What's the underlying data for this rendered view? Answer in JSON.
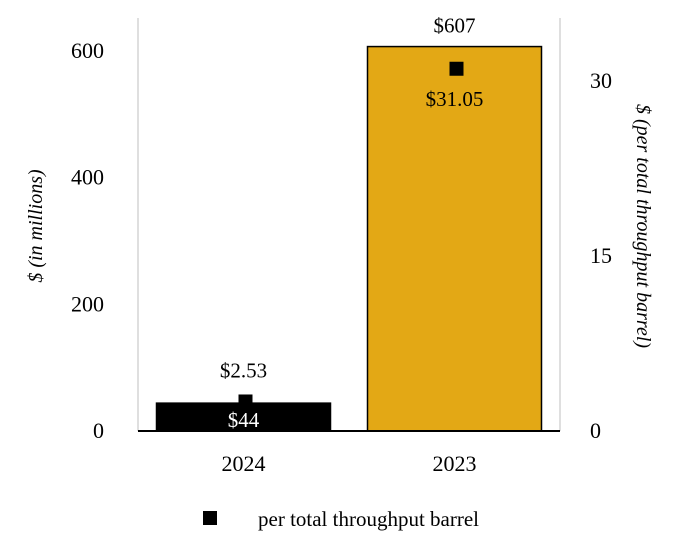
{
  "chart_data": {
    "type": "bar",
    "categories": [
      "2024",
      "2023"
    ],
    "series": [
      {
        "name": "",
        "axis": "left",
        "values": [
          44,
          607
        ],
        "labels": [
          "$44",
          "$607"
        ],
        "colors": [
          "#000000",
          "#E3A815"
        ]
      },
      {
        "name": "per total throughput barrel",
        "axis": "right",
        "marker": "square",
        "values": [
          2.53,
          31.05
        ],
        "labels": [
          "$2.53",
          "$31.05"
        ]
      }
    ],
    "ylabel_left": "$ (in millions)",
    "ylabel_right": "$ (per total throughput barrel)",
    "ylim_left": [
      0,
      600
    ],
    "yticks_left": [
      0,
      200,
      400,
      600
    ],
    "ylim_right": [
      0,
      30
    ],
    "yticks_right": [
      0,
      15,
      30
    ],
    "grid": false,
    "legend": {
      "position": "bottom-center",
      "entries": [
        "per total throughput barrel"
      ]
    }
  }
}
